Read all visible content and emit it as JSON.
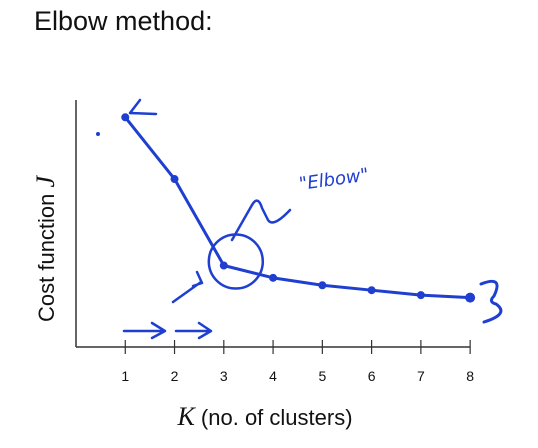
{
  "slide": {
    "title": "Elbow method:"
  },
  "chart_data": {
    "type": "line",
    "title": "",
    "xlabel_var": "K",
    "xlabel_rest": " (no. of clusters)",
    "ylabel_text": "Cost function ",
    "ylabel_var": "J",
    "x": [
      1,
      2,
      3,
      4,
      5,
      6,
      7,
      8
    ],
    "tick_labels": [
      "1",
      "2",
      "3",
      "4",
      "5",
      "6",
      "7",
      "8"
    ],
    "series": [
      {
        "values": [
          0.93,
          0.68,
          0.33,
          0.28,
          0.25,
          0.23,
          0.21,
          0.2
        ]
      }
    ],
    "xlim": [
      0.0,
      8.2
    ],
    "ylim": [
      0,
      1
    ],
    "grid": false,
    "annotations": {
      "elbow_label": "\"Elbow\"",
      "elbow_x": 3
    },
    "colors": {
      "axis": "#333333",
      "ink": "#1f3fd0",
      "text": "#111111"
    }
  }
}
